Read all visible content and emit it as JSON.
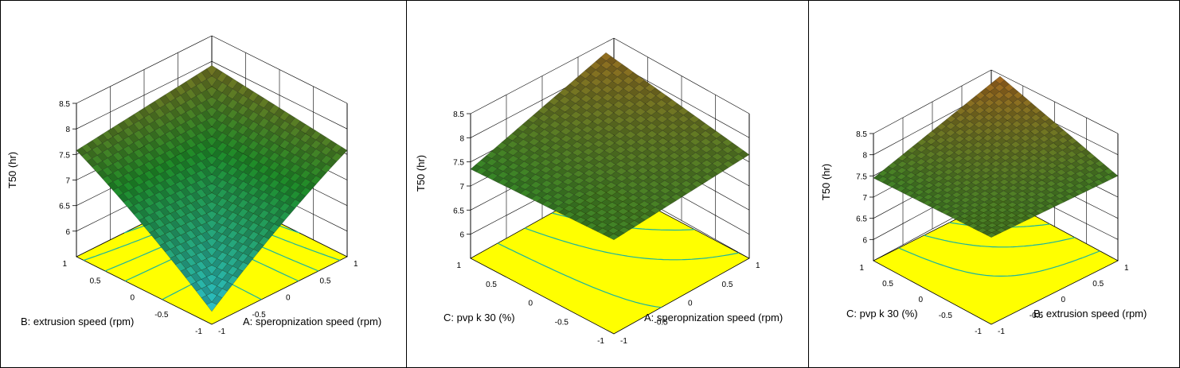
{
  "colors": {
    "base_plane": "#ffff00",
    "contour_line": "#19b4a0",
    "grid": "#000000",
    "surface_low": "#2ec8e6",
    "surface_mid": "#1e8c28",
    "surface_high": "#b4641e",
    "panel_border": "#000000"
  },
  "chart_data": [
    {
      "type": "surface3d",
      "zlabel": "T50 (hr)",
      "xlabel": "A: speropnization speed (rpm)",
      "ylabel": "B: extrusion speed (rpm)",
      "zticks": [
        "6",
        "6.5",
        "7",
        "7.5",
        "8",
        "8.5"
      ],
      "xticks": [
        "-1",
        "-0.5",
        "0",
        "0.5",
        "1"
      ],
      "yticks": [
        "-1",
        "-0.5",
        "0",
        "0.5",
        "1"
      ],
      "zlim": [
        5.5,
        8.5
      ],
      "xlim": [
        -1,
        1
      ],
      "ylim": [
        -1,
        1
      ],
      "surface": "saddle",
      "corner_values": {
        "x-1_y-1": 7.92,
        "x1_y-1": 7.58,
        "x1_y1": 7.92,
        "x-1_y1": 7.58
      },
      "center_value": 7.75,
      "front_corner_value": 5.75
    },
    {
      "type": "surface3d",
      "zlabel": "T50 (hr)",
      "xlabel": "A: speropnization speed (rpm)",
      "ylabel": "C: pvp k 30 (%)",
      "zticks": [
        "6",
        "6.5",
        "7",
        "7.5",
        "8",
        "8.5"
      ],
      "xticks": [
        "-1",
        "-0.5",
        "0",
        "0.5",
        "1"
      ],
      "yticks": [
        "-1",
        "-0.5",
        "0",
        "0.5",
        "1"
      ],
      "zlim": [
        5.5,
        8.5
      ],
      "xlim": [
        -1,
        1
      ],
      "ylim": [
        -1,
        1
      ],
      "surface": "plane",
      "corner_values": {
        "x-1_y-1": 7.45,
        "x1_y-1": 7.65,
        "x1_y1": 8.2,
        "x-1_y1": 7.35
      }
    },
    {
      "type": "surface3d",
      "zlabel": "T50 (hr)",
      "xlabel": "B: extrusion speed (rpm)",
      "ylabel": "C: pvp k 30 (%)",
      "zticks": [
        "6",
        "6.5",
        "7",
        "7.5",
        "8",
        "8.5"
      ],
      "xticks": [
        "-1",
        "-0.5",
        "0",
        "0.5",
        "1"
      ],
      "yticks": [
        "-1",
        "-0.5",
        "0",
        "0.5",
        "1"
      ],
      "zlim": [
        5.5,
        8.5
      ],
      "xlim": [
        -1,
        1
      ],
      "ylim": [
        -1,
        1
      ],
      "surface": "plane",
      "corner_values": {
        "x-1_y-1": 7.55,
        "x1_y-1": 7.5,
        "x1_y1": 8.35,
        "x-1_y1": 7.45
      }
    }
  ]
}
